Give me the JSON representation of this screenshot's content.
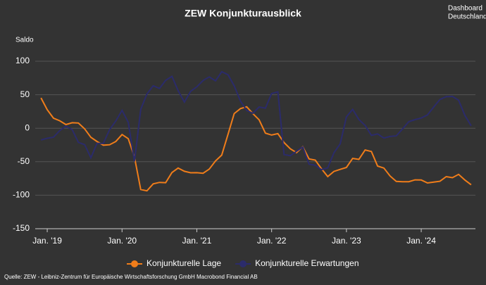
{
  "chart_data": {
    "type": "line",
    "title": "ZEW Konjunkturausblick",
    "y_label": "Saldo",
    "source": "Quelle: ZEW - Leibniz-Zentrum für Europäische Wirtschaftsforschung GmbH Macrobond Financial AB",
    "logo": [
      "Dashboard",
      "Deutschland"
    ],
    "categories": [
      null,
      "Jan. '19",
      null,
      null,
      null,
      null,
      null,
      null,
      null,
      null,
      null,
      null,
      null,
      "Jan. '20",
      null,
      null,
      null,
      null,
      null,
      null,
      null,
      null,
      null,
      null,
      null,
      "Jan. '21",
      null,
      null,
      null,
      null,
      null,
      null,
      null,
      null,
      null,
      null,
      null,
      "Jan. '22",
      null,
      null,
      null,
      null,
      null,
      null,
      null,
      null,
      null,
      null,
      null,
      "Jan. '23",
      null,
      null,
      null,
      null,
      null,
      null,
      null,
      null,
      null,
      null,
      null,
      "Jan. '24",
      null,
      null,
      null,
      null,
      null,
      null,
      null,
      null
    ],
    "series": [
      {
        "name": "Konjunkturelle Lage",
        "color": "#f07d1a",
        "values": [
          45.3,
          27.6,
          15.0,
          11.1,
          5.5,
          8.2,
          7.8,
          -1.1,
          -13.5,
          -19.9,
          -25.3,
          -24.7,
          -19.9,
          -9.5,
          -15.7,
          -43.1,
          -91.5,
          -93.5,
          -83.1,
          -80.9,
          -81.3,
          -66.2,
          -59.5,
          -64.3,
          -66.5,
          -66.4,
          -67.2,
          -61.0,
          -48.8,
          -40.1,
          -9.1,
          21.9,
          29.3,
          31.9,
          21.6,
          12.5,
          -7.4,
          -10.2,
          -8.1,
          -21.4,
          -30.8,
          -36.5,
          -27.6,
          -45.8,
          -47.6,
          -60.5,
          -72.2,
          -64.5,
          -61.4,
          -58.6,
          -45.1,
          -46.5,
          -32.5,
          -34.8,
          -56.5,
          -59.5,
          -71.3,
          -79.4,
          -79.9,
          -79.8,
          -77.1,
          -77.3,
          -81.7,
          -80.5,
          -79.2,
          -72.3,
          -73.8,
          -68.9,
          -77.3,
          -84.5
        ]
      },
      {
        "name": "Konjunkturelle Erwartungen",
        "color": "#2b2b6b",
        "values": [
          -17.5,
          -15.0,
          -13.4,
          -3.6,
          3.1,
          -2.1,
          -21.1,
          -24.5,
          -44.1,
          -22.5,
          -22.8,
          -2.1,
          10.7,
          26.7,
          8.7,
          -49.5,
          28.2,
          51.0,
          63.4,
          59.3,
          71.5,
          77.4,
          56.1,
          39.0,
          55.0,
          61.8,
          71.2,
          76.6,
          70.7,
          84.4,
          79.8,
          63.3,
          40.4,
          26.5,
          22.3,
          31.7,
          29.9,
          51.7,
          54.3,
          -39.3,
          -41.0,
          -34.3,
          -28.0,
          -53.8,
          -55.3,
          -61.9,
          -59.2,
          -36.7,
          -23.3,
          16.9,
          28.1,
          13.0,
          4.1,
          -10.7,
          -8.5,
          -14.7,
          -12.3,
          -11.4,
          -1.1,
          9.8,
          12.8,
          15.2,
          19.9,
          31.7,
          42.9,
          47.1,
          47.5,
          41.8,
          19.2,
          3.6
        ]
      }
    ],
    "ylim": [
      -150,
      100
    ],
    "yticks": [
      -150,
      -100,
      -50,
      0,
      50,
      100
    ],
    "grid": true,
    "legend": "bottom"
  }
}
